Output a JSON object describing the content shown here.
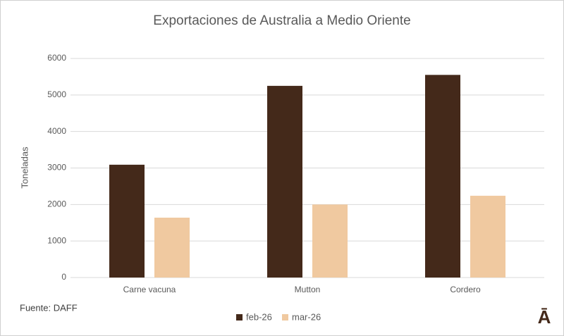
{
  "chart_data": {
    "type": "bar",
    "title": "Exportaciones de Australia a Medio Oriente",
    "y_label": "Toneladas",
    "source": "Fuente: DAFF",
    "logo": "Ā",
    "categories": [
      "Carne vacuna",
      "Mutton",
      "Cordero"
    ],
    "series": [
      {
        "name": "feb-26",
        "color": "#44291a",
        "values": [
          3090,
          5250,
          5550
        ]
      },
      {
        "name": "mar-26",
        "color": "#f0c9a0",
        "values": [
          1640,
          2000,
          2240
        ]
      }
    ],
    "ylim": [
      0,
      6000
    ],
    "yticks": [
      0,
      1000,
      2000,
      3000,
      4000,
      5000,
      6000
    ],
    "grid": true,
    "legend": "bottom"
  }
}
